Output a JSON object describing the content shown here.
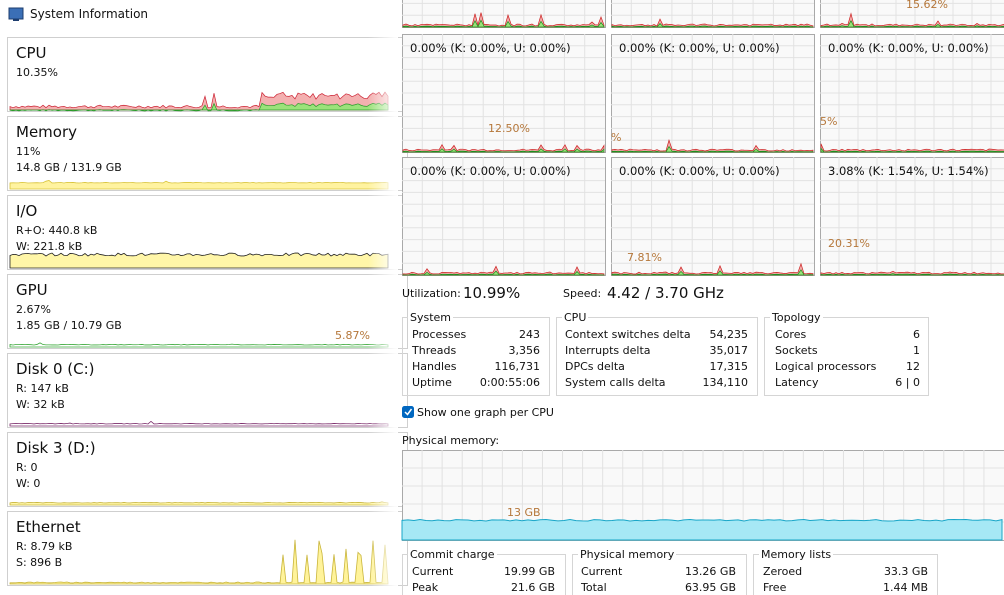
{
  "window": {
    "title": "System Information"
  },
  "sidebar": [
    {
      "name": "CPU",
      "lines": [
        "10.35%"
      ]
    },
    {
      "name": "Memory",
      "lines": [
        "11%",
        "14.8 GB / 131.9 GB"
      ]
    },
    {
      "name": "I/O",
      "lines": [
        "R+O: 440.8 kB",
        "W: 221.8 kB"
      ]
    },
    {
      "name": "GPU",
      "lines": [
        "2.67%",
        "1.85 GB / 10.79 GB"
      ],
      "graph_label": "5.87%"
    },
    {
      "name": "Disk 0 (C:)",
      "lines": [
        "R: 147 kB",
        "W: 32 kB"
      ]
    },
    {
      "name": "Disk 3 (D:)",
      "lines": [
        "R: 0",
        "W: 0"
      ]
    },
    {
      "name": "Ethernet",
      "lines": [
        "R: 8.79 kB",
        "S: 896 B"
      ]
    }
  ],
  "cpu_graphs": [
    {},
    {},
    {
      "peak": "15.62%"
    },
    {
      "text": "0.00% (K: 0.00%, U: 0.00%)",
      "peak": "12.50%"
    },
    {
      "text": "0.00% (K: 0.00%, U: 0.00%)",
      "peak": "%"
    },
    {
      "text": "0.00% (K: 0.00%, U: 0.00%)",
      "peak": "5%"
    },
    {
      "text": "0.00% (K: 0.00%, U: 0.00%)"
    },
    {
      "text": "0.00% (K: 0.00%, U: 0.00%)",
      "peak": "7.81%"
    },
    {
      "text": "3.08% (K: 1.54%, U: 1.54%)",
      "peak": "20.31%"
    }
  ],
  "utilization": {
    "label": "Utilization:",
    "value": "10.99%"
  },
  "speed": {
    "label": "Speed:",
    "value": "4.42 / 3.70 GHz"
  },
  "groups": [
    {
      "title": "System",
      "rows": [
        [
          "Processes",
          "243"
        ],
        [
          "Threads",
          "3,356"
        ],
        [
          "Handles",
          "116,731"
        ],
        [
          "Uptime",
          "0:00:55:06"
        ]
      ]
    },
    {
      "title": "CPU",
      "rows": [
        [
          "Context switches delta",
          "54,235"
        ],
        [
          "Interrupts delta",
          "35,017"
        ],
        [
          "DPCs delta",
          "17,315"
        ],
        [
          "System calls delta",
          "134,110"
        ]
      ]
    },
    {
      "title": "Topology",
      "rows": [
        [
          "Cores",
          "6"
        ],
        [
          "Sockets",
          "1"
        ],
        [
          "Logical processors",
          "12"
        ],
        [
          "Latency",
          "6 | 0"
        ]
      ]
    }
  ],
  "checkbox": {
    "label": "Show one graph per CPU",
    "checked": true
  },
  "physical_memory": {
    "label": "Physical memory:",
    "graph_label": "13 GB"
  },
  "memory_groups": [
    {
      "title": "Commit charge",
      "rows": [
        [
          "Current",
          "19.99 GB"
        ],
        [
          "Peak",
          "21.6 GB"
        ]
      ]
    },
    {
      "title": "Physical memory",
      "rows": [
        [
          "Current",
          "13.26 GB"
        ],
        [
          "Total",
          "63.95 GB"
        ]
      ]
    },
    {
      "title": "Memory lists",
      "rows": [
        [
          "Zeroed",
          "33.3 GB"
        ],
        [
          "Free",
          "1.44 MB"
        ]
      ]
    }
  ]
}
